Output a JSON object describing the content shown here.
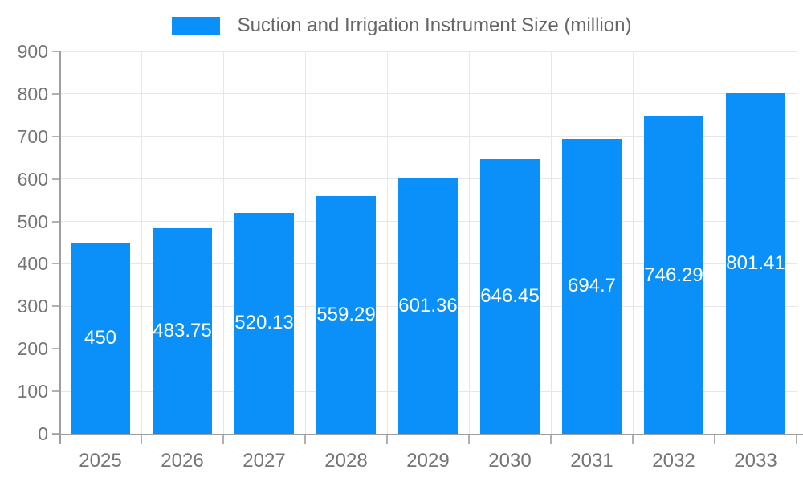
{
  "chart_data": {
    "type": "bar",
    "title": "Suction and Irrigation Instrument Size (million)",
    "categories": [
      "2025",
      "2026",
      "2027",
      "2028",
      "2029",
      "2030",
      "2031",
      "2032",
      "2033"
    ],
    "values": [
      450,
      483.75,
      520.13,
      559.29,
      601.36,
      646.45,
      694.7,
      746.29,
      801.41
    ],
    "value_labels": [
      "450",
      "483.75",
      "520.13",
      "559.29",
      "601.36",
      "646.45",
      "694.7",
      "746.29",
      "801.41"
    ],
    "xlabel": "",
    "ylabel": "",
    "ylim": [
      0,
      900
    ],
    "ytick_step": 100,
    "ytick_labels": [
      "0",
      "100",
      "200",
      "300",
      "400",
      "500",
      "600",
      "700",
      "800",
      "900"
    ],
    "grid": true,
    "legend_position": "top"
  },
  "colors": {
    "bar": "#0b90fa",
    "bar_value_text": "#ffffff",
    "legend_text": "#666666",
    "axis_text": "#757575",
    "gridline": "#e7e7e7",
    "axis_line": "#9e9e9e",
    "tick": "#b0b0b0",
    "background": "#ffffff"
  }
}
